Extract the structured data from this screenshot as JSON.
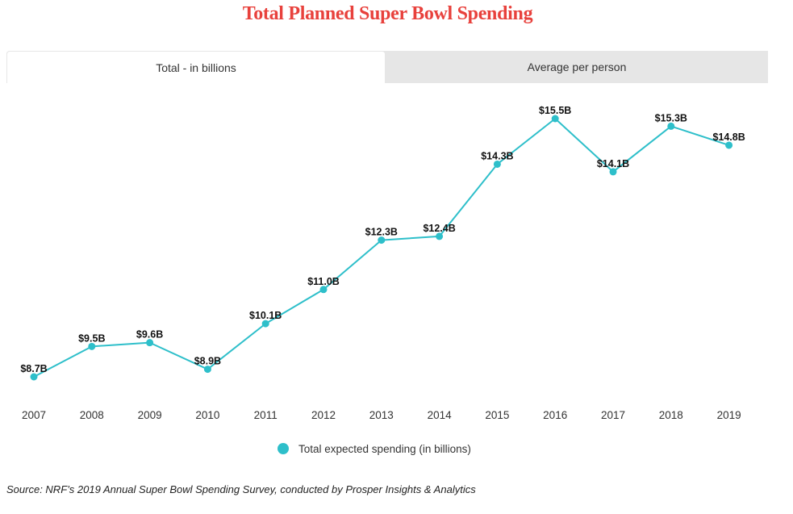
{
  "header": {
    "title": "Total Planned Super Bowl Spending"
  },
  "tabs": [
    {
      "label": "Total - in billions",
      "active": true
    },
    {
      "label": "Average per person",
      "active": false
    }
  ],
  "colors": {
    "title": "#e8413c",
    "series": "#2ebfca",
    "tab_bg": "#e6e6e6"
  },
  "chart_data": {
    "type": "line",
    "title": "Total Planned Super Bowl Spending",
    "xlabel": "",
    "ylabel": "",
    "x": [
      "2007",
      "2008",
      "2009",
      "2010",
      "2011",
      "2012",
      "2013",
      "2014",
      "2015",
      "2016",
      "2017",
      "2018",
      "2019"
    ],
    "series": [
      {
        "name": "Total expected spending (in billions)",
        "values": [
          8.7,
          9.5,
          9.6,
          8.9,
          10.1,
          11.0,
          12.3,
          12.4,
          14.3,
          15.5,
          14.1,
          15.3,
          14.8
        ],
        "labels": [
          "$8.7B",
          "$9.5B",
          "$9.6B",
          "$8.9B",
          "$10.1B",
          "$11.0B",
          "$12.3B",
          "$12.4B",
          "$14.3B",
          "$15.5B",
          "$14.1B",
          "$15.3B",
          "$14.8B"
        ]
      }
    ],
    "ylim": [
      8.7,
      15.5
    ],
    "grid": false,
    "legend": "bottom-center"
  },
  "legend": {
    "label": "Total expected spending (in billions)"
  },
  "footer": {
    "source": "Source: NRF’s 2019 Annual Super Bowl Spending Survey, conducted by Prosper Insights & Analytics"
  }
}
